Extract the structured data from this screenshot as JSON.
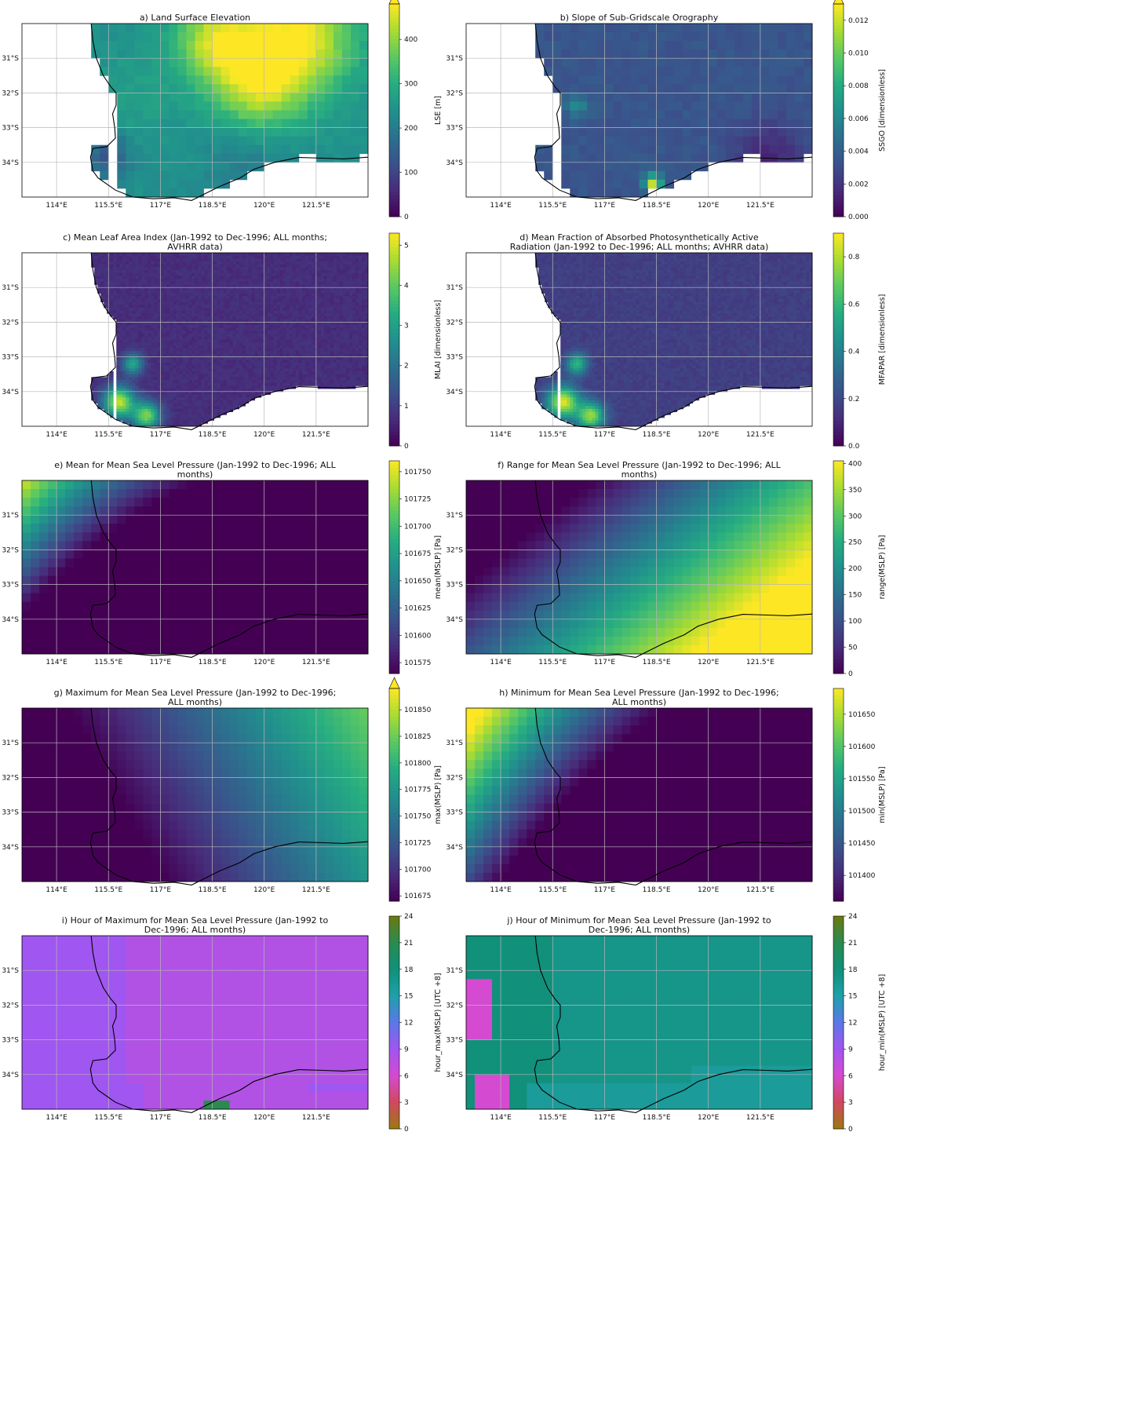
{
  "colors": {
    "land_nodata": "#ffffff",
    "coastline": "#000000",
    "grid": "#b8b8b8",
    "viridis": [
      "#440154",
      "#472c7a",
      "#3b518b",
      "#2c718e",
      "#21908d",
      "#27ad81",
      "#5cc863",
      "#aadc32",
      "#fde725"
    ],
    "hour_cmap": [
      "#9a7a10",
      "#d04860",
      "#d44ad0",
      "#a056f0",
      "#5a78e6",
      "#20a0a8",
      "#11907a",
      "#2a8a50",
      "#6a7a10"
    ]
  },
  "chart_data": [
    {
      "id": "a",
      "type": "heatmap",
      "title": "a) Land Surface Elevation",
      "colorbar_label": "LSE [m]",
      "colormap": "viridis",
      "vmin": 0,
      "vmax": 480,
      "extend": "max",
      "ticks": [
        "0",
        "100",
        "200",
        "300",
        "400"
      ],
      "tick_values": [
        0,
        100,
        200,
        300,
        400
      ],
      "xticks": [
        "114°E",
        "115.5°E",
        "117°E",
        "118.5°E",
        "120°E",
        "121.5°E"
      ],
      "yticks": [
        "31°S",
        "32°S",
        "33°S",
        "34°S"
      ],
      "lon_range": [
        113,
        123
      ],
      "lat_range": [
        -35,
        -30
      ],
      "land_only": true,
      "grid_cells": [
        40,
        20
      ],
      "field": [
        {
          "lon": 121.0,
          "lat": -30.4,
          "value": 470,
          "spread": 1.6
        },
        {
          "lon": 119.8,
          "lat": -31.8,
          "value": 420,
          "spread": 1.3
        },
        {
          "lon": 118.6,
          "lat": -30.5,
          "value": 430,
          "spread": 1.2
        },
        {
          "lon": 116.2,
          "lat": -32.2,
          "value": 270,
          "spread": 1.4
        },
        {
          "lon": 115.5,
          "lat": -33.8,
          "value": 120,
          "spread": 0.6
        },
        {
          "lon": 119.5,
          "lat": -34.0,
          "value": 200,
          "spread": 1.2
        }
      ],
      "base": 240
    },
    {
      "id": "b",
      "type": "heatmap",
      "title": "b) Slope of Sub-Gridscale Orography",
      "colorbar_label": "SSGO [dimensionless]",
      "colormap": "viridis",
      "vmin": 0.0,
      "vmax": 0.013,
      "extend": "max",
      "ticks": [
        "0.000",
        "0.002",
        "0.004",
        "0.006",
        "0.008",
        "0.010",
        "0.012"
      ],
      "tick_values": [
        0.0,
        0.002,
        0.004,
        0.006,
        0.008,
        0.01,
        0.012
      ],
      "xticks": [
        "114°E",
        "115.5°E",
        "117°E",
        "118.5°E",
        "120°E",
        "121.5°E"
      ],
      "yticks": [
        "31°S",
        "32°S",
        "33°S",
        "34°S"
      ],
      "lon_range": [
        113,
        123
      ],
      "lat_range": [
        -35,
        -30
      ],
      "land_only": true,
      "grid_cells": [
        40,
        20
      ],
      "field": [
        {
          "lon": 116.2,
          "lat": -32.4,
          "value": 0.0065,
          "spread": 0.3
        },
        {
          "lon": 118.4,
          "lat": -34.6,
          "value": 0.012,
          "spread": 0.25
        },
        {
          "lon": 121.8,
          "lat": -33.8,
          "value": 0.0015,
          "spread": 1.0
        }
      ],
      "base": 0.0035
    },
    {
      "id": "c",
      "type": "heatmap",
      "title": "c) Mean Leaf Area Index (Jan-1992 to Dec-1996; ALL months; AVHRR data)",
      "title_lines": [
        "c) Mean Leaf Area Index (Jan-1992 to Dec-1996; ALL months;",
        "AVHRR data)"
      ],
      "colorbar_label": "MLAI [dimensionless]",
      "colormap": "viridis",
      "vmin": 0,
      "vmax": 5.3,
      "extend": "neither",
      "ticks": [
        "0",
        "1",
        "2",
        "3",
        "4",
        "5"
      ],
      "tick_values": [
        0,
        1,
        2,
        3,
        4,
        5
      ],
      "xticks": [
        "114°E",
        "115.5°E",
        "117°E",
        "118.5°E",
        "120°E",
        "121.5°E"
      ],
      "yticks": [
        "31°S",
        "32°S",
        "33°S",
        "34°S"
      ],
      "lon_range": [
        113,
        123
      ],
      "lat_range": [
        -35,
        -30
      ],
      "land_only": true,
      "grid_cells": [
        110,
        60
      ],
      "field": [
        {
          "lon": 115.8,
          "lat": -34.3,
          "value": 4.8,
          "spread": 0.45
        },
        {
          "lon": 116.2,
          "lat": -33.2,
          "value": 3.2,
          "spread": 0.3
        },
        {
          "lon": 116.6,
          "lat": -34.7,
          "value": 4.2,
          "spread": 0.4
        }
      ],
      "base": 0.7
    },
    {
      "id": "d",
      "type": "heatmap",
      "title": "d) Mean Fraction of Absorbed Photosynthetically Active Radiation (Jan-1992 to Dec-1996; ALL months; AVHRR data)",
      "title_lines": [
        "d) Mean Fraction of Absorbed Photosynthetically Active",
        "Radiation (Jan-1992 to Dec-1996; ALL months; AVHRR data)"
      ],
      "colorbar_label": "MFAPAR [dimensionless]",
      "colormap": "viridis",
      "vmin": 0.0,
      "vmax": 0.9,
      "extend": "neither",
      "ticks": [
        "0.0",
        "0.2",
        "0.4",
        "0.6",
        "0.8"
      ],
      "tick_values": [
        0.0,
        0.2,
        0.4,
        0.6,
        0.8
      ],
      "xticks": [
        "114°E",
        "115.5°E",
        "117°E",
        "118.5°E",
        "120°E",
        "121.5°E"
      ],
      "yticks": [
        "31°S",
        "32°S",
        "33°S",
        "34°S"
      ],
      "lon_range": [
        113,
        123
      ],
      "lat_range": [
        -35,
        -30
      ],
      "land_only": true,
      "grid_cells": [
        110,
        60
      ],
      "field": [
        {
          "lon": 115.8,
          "lat": -34.3,
          "value": 0.85,
          "spread": 0.45
        },
        {
          "lon": 116.2,
          "lat": -33.2,
          "value": 0.6,
          "spread": 0.3
        },
        {
          "lon": 116.6,
          "lat": -34.7,
          "value": 0.75,
          "spread": 0.4
        }
      ],
      "base": 0.17
    },
    {
      "id": "e",
      "type": "heatmap",
      "title": "e) Mean for Mean Sea Level Pressure (Jan-1992 to Dec-1996; ALL months)",
      "title_lines": [
        "e) Mean for Mean Sea Level Pressure (Jan-1992 to Dec-1996; ALL",
        "months)"
      ],
      "colorbar_label": "mean(MSLP) [Pa]",
      "colormap": "viridis",
      "vmin": 101565,
      "vmax": 101760,
      "extend": "neither",
      "ticks": [
        "101575",
        "101600",
        "101625",
        "101650",
        "101675",
        "101700",
        "101725",
        "101750"
      ],
      "tick_values": [
        101575,
        101600,
        101625,
        101650,
        101675,
        101700,
        101725,
        101750
      ],
      "xticks": [
        "114°E",
        "115.5°E",
        "117°E",
        "118.5°E",
        "120°E",
        "121.5°E"
      ],
      "yticks": [
        "31°S",
        "32°S",
        "33°S",
        "34°S"
      ],
      "lon_range": [
        113,
        123
      ],
      "lat_range": [
        -35,
        -30
      ],
      "land_only": false,
      "grid_cells": [
        40,
        20
      ],
      "gradient": {
        "lon0": 117.5,
        "lat0": -30.0,
        "v0": 101580,
        "dlon": -22,
        "dlat": -48,
        "lonq": 3.5
      },
      "base": 101650
    },
    {
      "id": "f",
      "type": "heatmap",
      "title": "f) Range for Mean Sea Level Pressure (Jan-1992 to Dec-1996; ALL months)",
      "title_lines": [
        "f) Range for Mean Sea Level Pressure (Jan-1992 to Dec-1996; ALL",
        "months)"
      ],
      "colorbar_label": "range(MSLP) [Pa]",
      "colormap": "viridis",
      "vmin": 0,
      "vmax": 405,
      "extend": "neither",
      "ticks": [
        "0",
        "50",
        "100",
        "150",
        "200",
        "250",
        "300",
        "350",
        "400"
      ],
      "tick_values": [
        0,
        50,
        100,
        150,
        200,
        250,
        300,
        350,
        400
      ],
      "xticks": [
        "114°E",
        "115.5°E",
        "117°E",
        "118.5°E",
        "120°E",
        "121.5°E"
      ],
      "yticks": [
        "31°S",
        "32°S",
        "33°S",
        "34°S"
      ],
      "lon_range": [
        113,
        123
      ],
      "lat_range": [
        -35,
        -30
      ],
      "land_only": false,
      "grid_cells": [
        40,
        20
      ],
      "gradient": {
        "lon0": 113.0,
        "lat0": -35.0,
        "v0": 110,
        "dlon": 45,
        "dlat": 55,
        "lonq": 0
      },
      "base": 200
    },
    {
      "id": "g",
      "type": "heatmap",
      "title": "g) Maximum for Mean Sea Level Pressure (Jan-1992 to Dec-1996; ALL months)",
      "title_lines": [
        "g) Maximum for Mean Sea Level Pressure (Jan-1992 to Dec-1996;",
        "ALL months)"
      ],
      "colorbar_label": "max(MSLP) [Pa]",
      "colormap": "viridis",
      "vmin": 101670,
      "vmax": 101870,
      "extend": "max",
      "ticks": [
        "101675",
        "101700",
        "101725",
        "101750",
        "101775",
        "101800",
        "101825",
        "101850"
      ],
      "tick_values": [
        101675,
        101700,
        101725,
        101750,
        101775,
        101800,
        101825,
        101850
      ],
      "xticks": [
        "114°E",
        "115.5°E",
        "117°E",
        "118.5°E",
        "120°E",
        "121.5°E"
      ],
      "yticks": [
        "31°S",
        "32°S",
        "33°S",
        "34°S"
      ],
      "lon_range": [
        113,
        123
      ],
      "lat_range": [
        -35,
        -30
      ],
      "land_only": false,
      "grid_cells": [
        40,
        20
      ],
      "gradient": {
        "lon0": 115.5,
        "lat0": -30.0,
        "v0": 101690,
        "dlon": 18,
        "dlat": -10,
        "lonq": 0
      },
      "base": 101780
    },
    {
      "id": "h",
      "type": "heatmap",
      "title": "h) Minimum for Mean Sea Level Pressure (Jan-1992 to Dec-1996; ALL months)",
      "title_lines": [
        "h) Minimum for Mean Sea Level Pressure (Jan-1992 to Dec-1996;",
        "ALL months)"
      ],
      "colorbar_label": "min(MSLP) [Pa]",
      "colormap": "viridis",
      "vmin": 101360,
      "vmax": 101690,
      "extend": "neither",
      "ticks": [
        "101400",
        "101450",
        "101500",
        "101550",
        "101600",
        "101650"
      ],
      "tick_values": [
        101400,
        101450,
        101500,
        101550,
        101600,
        101650
      ],
      "xticks": [
        "114°E",
        "115.5°E",
        "117°E",
        "118.5°E",
        "120°E",
        "121.5°E"
      ],
      "yticks": [
        "31°S",
        "32°S",
        "33°S",
        "34°S"
      ],
      "lon_range": [
        113,
        123
      ],
      "lat_range": [
        -35,
        -30
      ],
      "land_only": false,
      "grid_cells": [
        40,
        20
      ],
      "gradient": {
        "lon0": 118.5,
        "lat0": -30.0,
        "v0": 101370,
        "dlon": -45,
        "dlat": -60,
        "lonq": 4.0
      },
      "base": 101500
    },
    {
      "id": "i",
      "type": "heatmap",
      "title": "i) Hour of Maximum for Mean Sea Level Pressure (Jan-1992 to Dec-1996; ALL months)",
      "title_lines": [
        "i) Hour of Maximum for Mean Sea Level Pressure (Jan-1992 to",
        "Dec-1996; ALL months)"
      ],
      "colorbar_label": "hour_max(MSLP) [UTC +8]",
      "colormap": "hour",
      "vmin": 0,
      "vmax": 24,
      "extend": "neither",
      "ticks": [
        "0",
        "3",
        "6",
        "9",
        "12",
        "15",
        "18",
        "21",
        "24"
      ],
      "tick_values": [
        0,
        3,
        6,
        9,
        12,
        15,
        18,
        21,
        24
      ],
      "xticks": [
        "114°E",
        "115.5°E",
        "117°E",
        "118.5°E",
        "120°E",
        "121.5°E"
      ],
      "yticks": [
        "31°S",
        "32°S",
        "33°S",
        "34°S"
      ],
      "lon_range": [
        113,
        123
      ],
      "lat_range": [
        -35,
        -30
      ],
      "land_only": false,
      "grid_cells": [
        40,
        20
      ],
      "regions": [
        {
          "hour": 9,
          "lon": [
            113,
            123
          ],
          "lat": [
            -35,
            -30
          ]
        },
        {
          "hour": 8,
          "lon": [
            116.0,
            123
          ],
          "lat": [
            -34.3,
            -30
          ]
        },
        {
          "hour": 8,
          "lon": [
            116.5,
            123
          ],
          "lat": [
            -35,
            -34.3
          ]
        },
        {
          "hour": 9,
          "lon": [
            121.2,
            123
          ],
          "lat": [
            -34.6,
            -34.3
          ]
        },
        {
          "hour": 21,
          "lon": [
            118.3,
            119.0
          ],
          "lat": [
            -35,
            -34.75
          ]
        }
      ]
    },
    {
      "id": "j",
      "type": "heatmap",
      "title": "j) Hour of Minimum for Mean Sea Level Pressure (Jan-1992 to Dec-1996; ALL months)",
      "title_lines": [
        "j) Hour of Minimum for Mean Sea Level Pressure (Jan-1992 to",
        "Dec-1996; ALL months)"
      ],
      "colorbar_label": "hour_min(MSLP) [UTC +8]",
      "colormap": "hour",
      "vmin": 0,
      "vmax": 24,
      "extend": "neither",
      "ticks": [
        "0",
        "3",
        "6",
        "9",
        "12",
        "15",
        "18",
        "21",
        "24"
      ],
      "tick_values": [
        0,
        3,
        6,
        9,
        12,
        15,
        18,
        21,
        24
      ],
      "xticks": [
        "114°E",
        "115.5°E",
        "117°E",
        "118.5°E",
        "120°E",
        "121.5°E"
      ],
      "yticks": [
        "31°S",
        "32°S",
        "33°S",
        "34°S"
      ],
      "lon_range": [
        113,
        123
      ],
      "lat_range": [
        -35,
        -30
      ],
      "land_only": false,
      "grid_cells": [
        40,
        20
      ],
      "regions": [
        {
          "hour": 17,
          "lon": [
            113,
            123
          ],
          "lat": [
            -35,
            -30
          ]
        },
        {
          "hour": 18,
          "lon": [
            113,
            115.4
          ],
          "lat": [
            -35,
            -30
          ]
        },
        {
          "hour": 6,
          "lon": [
            113,
            113.75
          ],
          "lat": [
            -33.0,
            -31.3
          ]
        },
        {
          "hour": 6,
          "lon": [
            113.25,
            114.25
          ],
          "lat": [
            -35,
            -34.1
          ]
        },
        {
          "hour": 16,
          "lon": [
            114.8,
            123
          ],
          "lat": [
            -35,
            -34.2
          ]
        },
        {
          "hour": 16,
          "lon": [
            119.5,
            123
          ],
          "lat": [
            -34.2,
            -33.8
          ]
        }
      ]
    }
  ]
}
